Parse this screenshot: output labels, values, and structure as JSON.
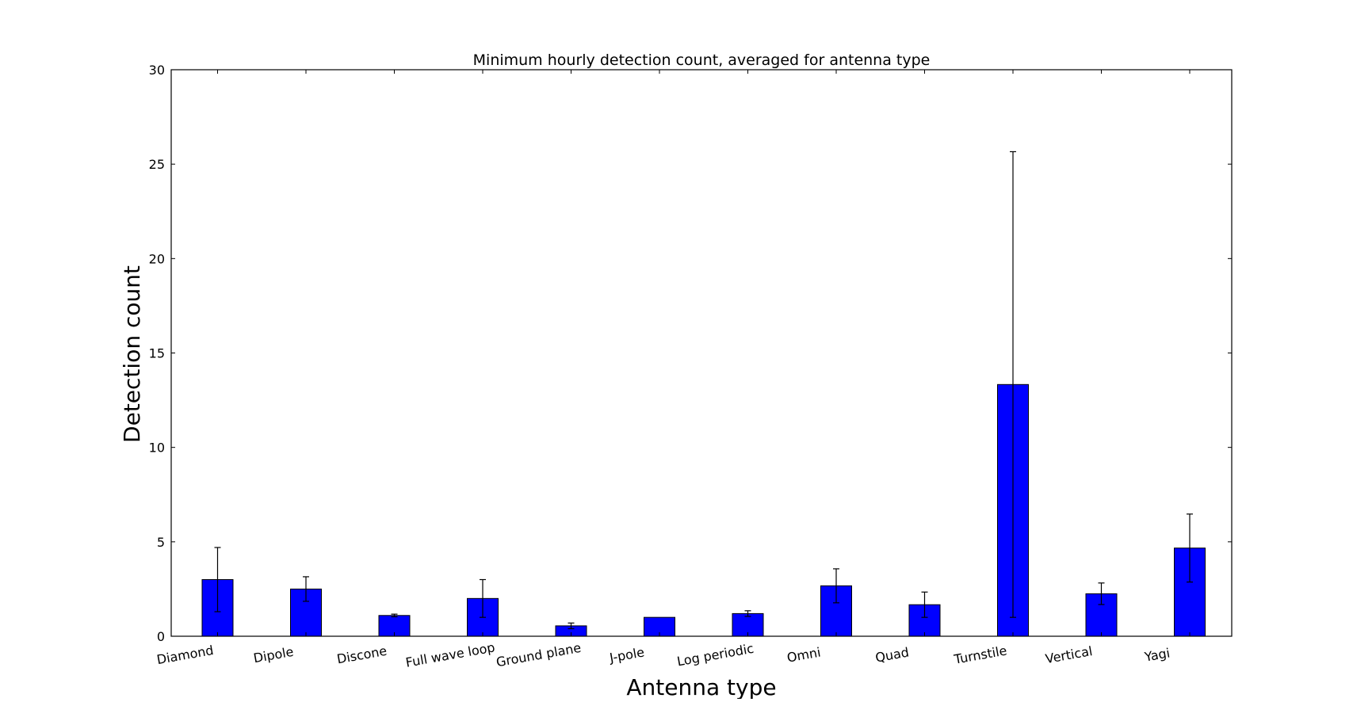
{
  "chart_data": {
    "type": "bar",
    "title": "Minimum hourly detection count, averaged for antenna type",
    "xlabel": "Antenna type",
    "ylabel": "Detection count",
    "ylim": [
      0,
      30
    ],
    "yticks": [
      0,
      5,
      10,
      15,
      20,
      25,
      30
    ],
    "grid": false,
    "legend": "none",
    "categories": [
      "Diamond",
      "Dipole",
      "Discone",
      "Full wave loop",
      "Ground plane",
      "J-pole",
      "Log periodic",
      "Omni",
      "Quad",
      "Turnstile",
      "Vertical",
      "Yagi"
    ],
    "values": [
      3.0,
      2.5,
      1.1,
      2.0,
      0.55,
      1.0,
      1.2,
      2.67,
      1.67,
      13.33,
      2.25,
      4.67
    ],
    "errors": [
      1.7,
      0.65,
      0.07,
      1.0,
      0.15,
      0.0,
      0.15,
      0.9,
      0.67,
      12.33,
      0.57,
      1.8
    ],
    "bar_color": "#0000ff",
    "edge_color": "#000000"
  }
}
